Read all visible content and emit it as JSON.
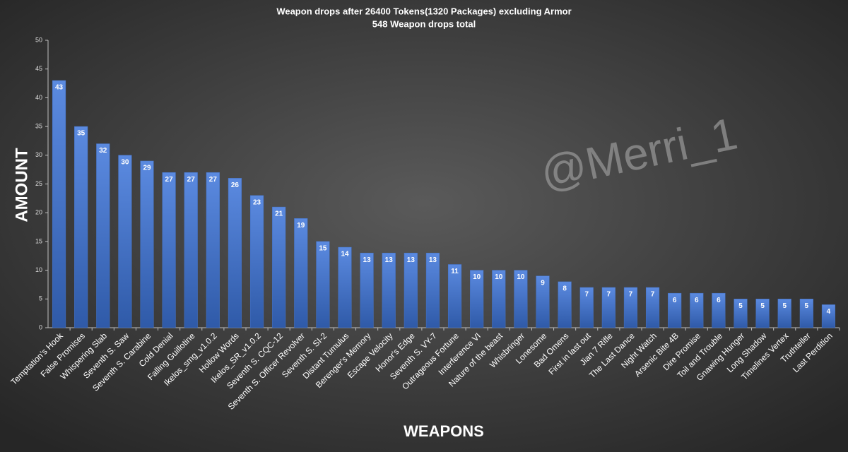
{
  "chart_data": {
    "type": "bar",
    "title": "Weapon drops after 26400 Tokens(1320 Packages) excluding Armor",
    "subtitle": "548 Weapon drops total",
    "y_label": "AMOUNT",
    "x_label": "WEAPONS",
    "annotation": "@Merri_1",
    "categories": [
      "Temptation's Hook",
      "False Promises",
      "Whispering Slab",
      "Seventh S. Saw",
      "Seventh S. Carabine",
      "Cold Denial",
      "Falling Guillotine",
      "Ikelos_smg_v1.0.2",
      "Hollow Words",
      "Ikelos_SR_v1.0.2",
      "Seventh S. CQC-12",
      "Seventh S. Officer Revolver",
      "Seventh S. SI-2",
      "Distant Tumulus",
      "Berenger's Memory",
      "Escape Velocity",
      "Honor's Edge",
      "Seventh S. VY-7",
      "Outrageous Fortune",
      "Interference VI",
      "Nature of the beast",
      "Whisbringer",
      "Lonesome",
      "Bad Omens",
      "First in last out",
      "Jian 7 Rifle",
      "The Last Dance",
      "Night Watch",
      "Arsenic Bite 4B",
      "Dire Promise",
      "Toil and Trouble",
      "Gnawing Hunger",
      "Long Shadow",
      "Timelines Vertex",
      "Truthteller",
      "Last Perdition"
    ],
    "values": [
      43,
      35,
      32,
      30,
      29,
      27,
      27,
      27,
      26,
      23,
      21,
      19,
      15,
      14,
      13,
      13,
      13,
      13,
      11,
      10,
      10,
      10,
      9,
      8,
      7,
      7,
      7,
      7,
      6,
      6,
      6,
      5,
      5,
      5,
      5,
      4
    ],
    "color": "#4472c4",
    "ylim": [
      0,
      50
    ],
    "yticks": [
      0,
      5,
      10,
      15,
      20,
      25,
      30,
      35,
      40,
      45,
      50
    ],
    "grid": false
  }
}
